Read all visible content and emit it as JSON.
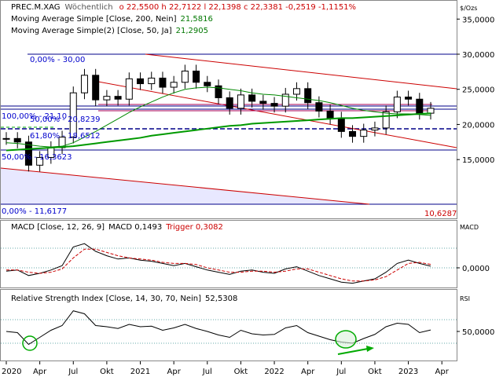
{
  "header": {
    "symbol": "PREC.M.XAG",
    "interval": "Wöchentlich",
    "ohlc": "o 22,5500  h 22,7122  l 22,1398  c 22,3381  -0,2519  -1,1151%",
    "unit": "$/Ozs"
  },
  "legend": {
    "ma200": "Moving Average Simple [Close, 200, Nein]",
    "ma200_value": "21,5816",
    "ma50": "Moving Average Simple(2) [Close, 50, Ja]",
    "ma50_value": "21,2905"
  },
  "macd_legend": {
    "label": "MACD [Close, 12, 26, 9]",
    "macd_value": "MACD 0,1493",
    "trigger": "Trigger 0,3082",
    "axis_unit": "MACD"
  },
  "rsi_legend": {
    "label": "Relative Strength Index [Close, 14, 30, 70, Nein]",
    "value": "52,5308",
    "axis_unit": "RSI"
  },
  "fibo": {
    "f0_top": "0,00% - 30,00",
    "f100": "100,00% - 21,10",
    "f50": "50,00% - 20,8239",
    "f618": "61,80% - 18,6512",
    "f50b": "50,00% - 16,3623",
    "f0_bottom": "0,00% - 11,6177",
    "bottom_value": "10,6287"
  },
  "colors": {
    "price": "#000000",
    "ma200": "#009900",
    "ma50": "#008800",
    "channel": "#cc0000",
    "fibo": "#0000aa",
    "macd": "#000000",
    "trigger": "#cc0000",
    "rsi": "#000000",
    "arrow": "#00aa00",
    "shade": "#e8e8ff"
  },
  "chart_data": [
    {
      "type": "candlestick",
      "title": "PREC.M.XAG",
      "ylabel": "$/Ozs",
      "ylim": [
        10,
        37.5
      ],
      "yticks": [
        "15,0000",
        "20,0000",
        "25,0000",
        "30,0000",
        "35,0000"
      ],
      "ytick_values": [
        15,
        20,
        25,
        30,
        35
      ],
      "x": [
        "2020-01",
        "2020-02",
        "2020-03",
        "2020-04",
        "2020-05",
        "2020-06",
        "2020-07",
        "2020-08",
        "2020-09",
        "2020-10",
        "2020-11",
        "2020-12",
        "2021-01",
        "2021-02",
        "2021-03",
        "2021-04",
        "2021-05",
        "2021-06",
        "2021-07",
        "2021-08",
        "2021-09",
        "2021-10",
        "2021-11",
        "2021-12",
        "2022-01",
        "2022-02",
        "2022-03",
        "2022-04",
        "2022-05",
        "2022-06",
        "2022-07",
        "2022-08",
        "2022-09",
        "2022-10",
        "2022-11",
        "2022-12",
        "2023-01",
        "2023-02",
        "2023-03"
      ],
      "close": [
        18.0,
        17.5,
        14.2,
        15.3,
        16.7,
        18.2,
        24.5,
        27.0,
        23.5,
        24.0,
        23.6,
        26.5,
        25.8,
        26.6,
        25.3,
        26.0,
        27.6,
        26.0,
        25.5,
        23.8,
        22.3,
        24.2,
        23.3,
        23.0,
        22.6,
        24.3,
        25.1,
        23.1,
        21.9,
        20.9,
        19.0,
        18.3,
        19.2,
        19.5,
        21.8,
        23.9,
        23.6,
        21.6,
        22.3
      ],
      "ma200": [
        16.3,
        16.4,
        16.5,
        16.6,
        16.7,
        16.8,
        16.9,
        17.1,
        17.3,
        17.5,
        17.7,
        17.9,
        18.1,
        18.4,
        18.6,
        18.8,
        19.0,
        19.2,
        19.4,
        19.6,
        19.8,
        19.9,
        20.1,
        20.2,
        20.3,
        20.4,
        20.5,
        20.6,
        20.7,
        20.8,
        20.9,
        20.9,
        21.0,
        21.1,
        21.2,
        21.3,
        21.4,
        21.5,
        21.58
      ],
      "ma50": [
        17.4,
        17.3,
        17.1,
        16.9,
        16.8,
        16.9,
        17.4,
        18.2,
        19.0,
        19.9,
        20.8,
        21.7,
        22.5,
        23.2,
        23.9,
        24.5,
        25.0,
        25.2,
        25.3,
        25.2,
        25.0,
        24.8,
        24.5,
        24.3,
        24.2,
        24.0,
        23.8,
        23.6,
        23.4,
        23.1,
        22.7,
        22.3,
        22.0,
        21.8,
        21.6,
        21.5,
        21.5,
        21.4,
        21.29
      ],
      "x_labels": [
        "2020",
        "Apr",
        "Jul",
        "Okt",
        "2021",
        "Apr",
        "Jul",
        "Okt",
        "2022",
        "Apr",
        "Jul",
        "Okt",
        "2023",
        "Apr"
      ],
      "x_label_index": [
        0,
        3,
        6,
        9,
        12,
        15,
        18,
        21,
        24,
        27,
        30,
        33,
        36,
        39
      ],
      "grid": false
    },
    {
      "type": "line",
      "title": "MACD [Close, 12, 26, 9]",
      "series": [
        {
          "name": "MACD",
          "values": [
            -0.3,
            -0.2,
            -0.7,
            -0.5,
            -0.2,
            0.2,
            1.9,
            2.2,
            1.5,
            1.1,
            0.8,
            0.9,
            0.7,
            0.6,
            0.4,
            0.2,
            0.4,
            0.1,
            -0.2,
            -0.4,
            -0.6,
            -0.3,
            -0.2,
            -0.4,
            -0.5,
            -0.1,
            0.1,
            -0.3,
            -0.7,
            -1.0,
            -1.3,
            -1.4,
            -1.2,
            -1.0,
            -0.4,
            0.4,
            0.7,
            0.4,
            0.15
          ]
        },
        {
          "name": "Trigger",
          "values": [
            -0.2,
            -0.2,
            -0.4,
            -0.5,
            -0.4,
            -0.1,
            0.9,
            1.7,
            1.7,
            1.4,
            1.1,
            0.9,
            0.8,
            0.7,
            0.5,
            0.4,
            0.4,
            0.3,
            0.0,
            -0.2,
            -0.4,
            -0.4,
            -0.3,
            -0.3,
            -0.4,
            -0.3,
            -0.1,
            -0.1,
            -0.4,
            -0.7,
            -1.0,
            -1.2,
            -1.2,
            -1.1,
            -0.8,
            -0.2,
            0.4,
            0.5,
            0.31
          ]
        }
      ],
      "yticks": [
        "0,0000"
      ],
      "ytick_values": [
        0
      ],
      "ylim": [
        -2.0,
        3.0
      ]
    },
    {
      "type": "line",
      "title": "Relative Strength Index [Close, 14, 30, 70, Nein]",
      "series": [
        {
          "name": "RSI",
          "values": [
            50,
            48,
            28,
            40,
            52,
            60,
            85,
            80,
            60,
            58,
            55,
            62,
            58,
            59,
            52,
            56,
            62,
            55,
            50,
            44,
            40,
            52,
            46,
            44,
            45,
            56,
            60,
            48,
            42,
            36,
            32,
            30,
            38,
            45,
            58,
            64,
            62,
            48,
            52.5
          ]
        }
      ],
      "yticks": [
        "50,0000"
      ],
      "ytick_values": [
        50
      ],
      "levels": [
        30,
        70
      ],
      "ylim": [
        10,
        100
      ]
    }
  ]
}
